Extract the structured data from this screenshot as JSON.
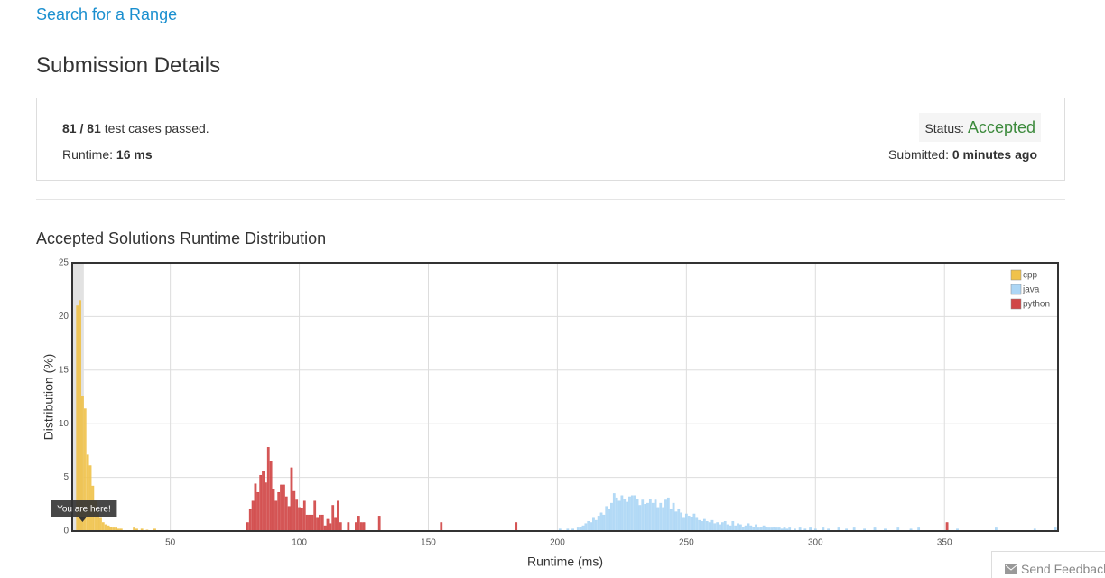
{
  "link": "Search for a Range",
  "heading": "Submission Details",
  "summary": {
    "passed": "81 / 81",
    "passed_text": "test cases passed.",
    "runtime_label": "Runtime:",
    "runtime": "16 ms",
    "status_label": "Status:",
    "status": "Accepted",
    "submitted_label": "Submitted:",
    "submitted": "0 minutes ago"
  },
  "feedback": "Send Feedback",
  "chart_data": {
    "type": "bar",
    "title": "Accepted Solutions Runtime Distribution",
    "x_label": "Runtime (ms)",
    "y_label": "Distribution (%)",
    "xlim": [
      12,
      394
    ],
    "ylim": [
      0,
      25
    ],
    "xticks": [
      50,
      100,
      150,
      200,
      250,
      300,
      350
    ],
    "yticks": [
      0,
      5,
      10,
      15,
      20,
      25
    ],
    "grid": true,
    "legend": "upper right",
    "highlight_x": 16,
    "annotation": "You are here!",
    "series": [
      {
        "name": "cpp",
        "color": "#f0c24b",
        "x": [
          14,
          15,
          16,
          17,
          18,
          19,
          20,
          21,
          22,
          23,
          24,
          25,
          26,
          27,
          28,
          29,
          30,
          31,
          36,
          37,
          39,
          41,
          44
        ],
        "values": [
          21,
          21.5,
          12.6,
          11.4,
          7.1,
          6.1,
          4.2,
          2.8,
          1.8,
          1.2,
          0.8,
          0.6,
          0.5,
          0.4,
          0.3,
          0.3,
          0.2,
          0.2,
          0.3,
          0.2,
          0.2,
          0.1,
          0.2
        ]
      },
      {
        "name": "java",
        "color": "#acd6f5",
        "x": [
          201,
          204,
          206,
          208,
          209,
          210,
          211,
          212,
          213,
          214,
          215,
          216,
          217,
          218,
          219,
          220,
          221,
          222,
          223,
          224,
          225,
          226,
          227,
          228,
          229,
          230,
          231,
          232,
          233,
          234,
          235,
          236,
          237,
          238,
          239,
          240,
          241,
          242,
          243,
          244,
          245,
          246,
          247,
          248,
          249,
          250,
          251,
          252,
          253,
          254,
          255,
          256,
          257,
          258,
          259,
          260,
          261,
          262,
          263,
          264,
          265,
          266,
          267,
          268,
          269,
          270,
          271,
          272,
          273,
          274,
          275,
          276,
          277,
          278,
          279,
          280,
          281,
          282,
          283,
          284,
          285,
          286,
          287,
          288,
          289,
          290,
          292,
          294,
          296,
          298,
          300,
          303,
          305,
          309,
          312,
          315,
          319,
          323,
          327,
          332,
          337,
          340,
          355,
          370,
          385,
          393
        ],
        "values": [
          0.2,
          0.2,
          0.2,
          0.3,
          0.4,
          0.5,
          0.7,
          0.9,
          0.8,
          1.2,
          1.0,
          1.4,
          1.7,
          1.5,
          2.3,
          2.0,
          2.6,
          3.5,
          3.1,
          2.8,
          3.3,
          3.0,
          2.7,
          3.2,
          3.3,
          3.3,
          3.0,
          2.4,
          2.9,
          2.5,
          2.6,
          3.0,
          2.6,
          2.9,
          2.2,
          2.6,
          2.2,
          2.9,
          3.1,
          2.0,
          2.6,
          1.8,
          2.0,
          1.7,
          1.2,
          1.6,
          1.4,
          1.3,
          1.6,
          1.2,
          1.0,
          0.9,
          1.1,
          0.9,
          0.8,
          1.0,
          0.7,
          0.8,
          0.6,
          0.8,
          0.9,
          0.6,
          0.5,
          0.9,
          0.5,
          0.7,
          0.6,
          0.4,
          0.5,
          0.7,
          0.5,
          0.4,
          0.6,
          0.3,
          0.4,
          0.5,
          0.4,
          0.3,
          0.3,
          0.4,
          0.3,
          0.3,
          0.2,
          0.3,
          0.2,
          0.3,
          0.2,
          0.3,
          0.2,
          0.3,
          0.2,
          0.3,
          0.2,
          0.3,
          0.2,
          0.3,
          0.2,
          0.3,
          0.2,
          0.3,
          0.2,
          0.3,
          0.2,
          0.3,
          0.2,
          0.3
        ]
      },
      {
        "name": "python",
        "color": "#d04545",
        "x": [
          80,
          81,
          82,
          83,
          84,
          85,
          86,
          87,
          88,
          89,
          90,
          91,
          92,
          93,
          94,
          95,
          96,
          97,
          98,
          99,
          100,
          101,
          102,
          103,
          104,
          105,
          106,
          107,
          108,
          109,
          110,
          111,
          112,
          113,
          114,
          115,
          116,
          119,
          122,
          123,
          124,
          125,
          131,
          155,
          184,
          351
        ],
        "values": [
          0.8,
          2.0,
          2.8,
          4.4,
          3.6,
          5.2,
          5.6,
          4.5,
          7.8,
          6.5,
          3.9,
          2.8,
          3.6,
          4.3,
          4.3,
          3.2,
          2.3,
          5.9,
          3.7,
          2.9,
          2.2,
          2.1,
          2.8,
          1.5,
          1.5,
          1.5,
          2.8,
          1.2,
          1.5,
          1.5,
          0.5,
          1.1,
          0.7,
          2.4,
          1.2,
          2.8,
          0.8,
          0.8,
          0.8,
          1.4,
          0.8,
          0.8,
          1.4,
          0.8,
          0.8,
          0.8
        ]
      }
    ]
  }
}
